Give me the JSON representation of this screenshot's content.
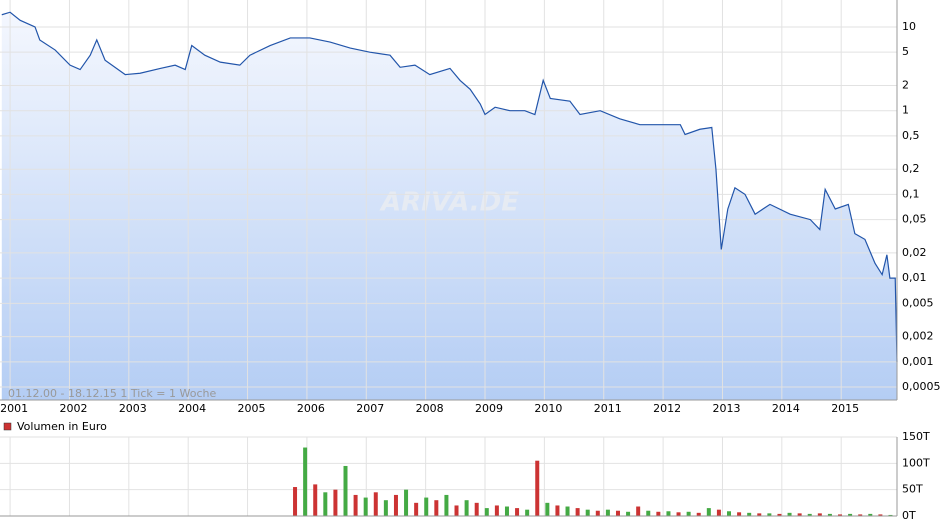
{
  "chart_data": [
    {
      "type": "line",
      "log_scale": true,
      "grid": true,
      "color": "#2255aa",
      "fill_top": "#f4f7fe",
      "fill_bottom": "#b4cdf4",
      "watermark": "ARIVA.DE",
      "range_label": "01.12.00 - 18.12.15   1 Tick = 1 Woche",
      "xlim": [
        2000.83,
        2015.94
      ],
      "xticks": [
        2001,
        2002,
        2003,
        2004,
        2005,
        2006,
        2007,
        2008,
        2009,
        2010,
        2011,
        2012,
        2013,
        2014,
        2015
      ],
      "ylim": [
        0.00035,
        21
      ],
      "yticks": [
        10,
        5,
        2,
        1,
        {
          "value": 0.5,
          "label": "0,5"
        },
        {
          "value": 0.2,
          "label": "0,2"
        },
        {
          "value": 0.1,
          "label": "0,1"
        },
        {
          "value": 0.05,
          "label": "0,05"
        },
        {
          "value": 0.02,
          "label": "0,02"
        },
        {
          "value": 0.01,
          "label": "0,01"
        },
        {
          "value": 0.005,
          "label": "0,005"
        },
        {
          "value": 0.002,
          "label": "0,002"
        },
        {
          "value": 0.001,
          "label": "0,001"
        },
        {
          "value": 0.0005,
          "label": "0,0005"
        }
      ],
      "x": [
        2000.86,
        2001.0,
        2001.17,
        2001.42,
        2001.5,
        2001.76,
        2002.01,
        2002.18,
        2002.35,
        2002.46,
        2002.6,
        2002.94,
        2003.19,
        2003.53,
        2003.78,
        2003.95,
        2004.06,
        2004.28,
        2004.54,
        2004.87,
        2005.04,
        2005.38,
        2005.72,
        2006.05,
        2006.39,
        2006.73,
        2007.06,
        2007.4,
        2007.57,
        2007.82,
        2008.07,
        2008.41,
        2008.58,
        2008.75,
        2008.92,
        2009.0,
        2009.17,
        2009.42,
        2009.67,
        2009.84,
        2009.98,
        2010.1,
        2010.43,
        2010.6,
        2010.94,
        2011.27,
        2011.61,
        2011.95,
        2012.29,
        2012.37,
        2012.62,
        2012.82,
        2012.89,
        2012.98,
        2013.09,
        2013.21,
        2013.38,
        2013.55,
        2013.8,
        2014.14,
        2014.48,
        2014.64,
        2014.73,
        2014.9,
        2015.12,
        2015.23,
        2015.4,
        2015.57,
        2015.69,
        2015.77,
        2015.82,
        2015.91,
        2015.94
      ],
      "values": [
        14,
        15,
        12,
        10,
        7,
        5.3,
        3.5,
        3.1,
        4.6,
        7,
        4,
        2.7,
        2.8,
        3.2,
        3.5,
        3.1,
        6,
        4.6,
        3.8,
        3.5,
        4.6,
        6,
        7.4,
        7.4,
        6.6,
        5.6,
        5,
        4.6,
        3.3,
        3.5,
        2.7,
        3.2,
        2.3,
        1.8,
        1.2,
        0.9,
        1.1,
        1.0,
        1.0,
        0.9,
        2.3,
        1.4,
        1.3,
        0.9,
        1.0,
        0.8,
        0.68,
        0.68,
        0.68,
        0.52,
        0.6,
        0.63,
        0.2,
        0.022,
        0.067,
        0.12,
        0.1,
        0.058,
        0.076,
        0.058,
        0.05,
        0.038,
        0.115,
        0.067,
        0.076,
        0.034,
        0.029,
        0.015,
        0.011,
        0.019,
        0.01,
        0.01,
        0.001
      ]
    },
    {
      "type": "bar",
      "grid": true,
      "xlim": [
        2000.83,
        2015.94
      ],
      "ylim": [
        0,
        150000
      ],
      "yticks": [
        {
          "value": 0,
          "label": "0T"
        },
        {
          "value": 50000,
          "label": "50T"
        },
        {
          "value": 100000,
          "label": "100T"
        },
        {
          "value": 150000,
          "label": "150T"
        }
      ],
      "x": [
        2005.8,
        2005.97,
        2006.14,
        2006.31,
        2006.48,
        2006.65,
        2006.82,
        2006.99,
        2007.16,
        2007.33,
        2007.5,
        2007.67,
        2007.84,
        2008.01,
        2008.18,
        2008.35,
        2008.52,
        2008.69,
        2008.86,
        2009.03,
        2009.2,
        2009.37,
        2009.54,
        2009.71,
        2009.88,
        2010.05,
        2010.22,
        2010.39,
        2010.56,
        2010.73,
        2010.9,
        2011.07,
        2011.24,
        2011.41,
        2011.58,
        2011.75,
        2011.92,
        2012.09,
        2012.26,
        2012.43,
        2012.6,
        2012.77,
        2012.94,
        2013.11,
        2013.28,
        2013.45,
        2013.62,
        2013.79,
        2013.96,
        2014.13,
        2014.3,
        2014.47,
        2014.64,
        2014.81,
        2014.98,
        2015.15,
        2015.32,
        2015.49,
        2015.66,
        2015.83
      ],
      "series": [
        {
          "name": "Volumen in Euro",
          "color": "#cc3333",
          "alt_color": "#44aa44",
          "values": [
            55000,
            130000,
            60000,
            45000,
            50000,
            95000,
            40000,
            35000,
            45000,
            30000,
            40000,
            50000,
            25000,
            35000,
            30000,
            40000,
            20000,
            30000,
            25000,
            15000,
            20000,
            18000,
            15000,
            12000,
            105000,
            25000,
            20000,
            18000,
            15000,
            12000,
            10000,
            12000,
            10000,
            8000,
            18000,
            10000,
            8000,
            9000,
            7000,
            8000,
            6000,
            15000,
            12000,
            9000,
            7000,
            6000,
            5000,
            5000,
            4000,
            6000,
            5000,
            4000,
            5000,
            4000,
            3000,
            4000,
            3000,
            4000,
            3000,
            2000
          ]
        }
      ]
    }
  ]
}
